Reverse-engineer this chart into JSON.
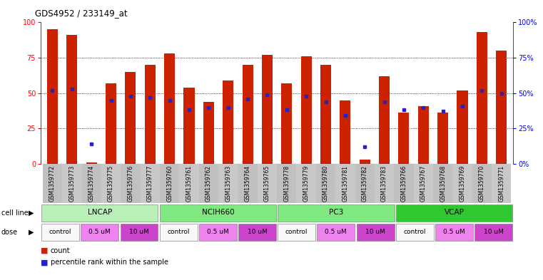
{
  "title": "GDS4952 / 233149_at",
  "samples": [
    "GSM1359772",
    "GSM1359773",
    "GSM1359774",
    "GSM1359775",
    "GSM1359776",
    "GSM1359777",
    "GSM1359760",
    "GSM1359761",
    "GSM1359762",
    "GSM1359763",
    "GSM1359764",
    "GSM1359765",
    "GSM1359778",
    "GSM1359779",
    "GSM1359780",
    "GSM1359781",
    "GSM1359782",
    "GSM1359783",
    "GSM1359766",
    "GSM1359767",
    "GSM1359768",
    "GSM1359769",
    "GSM1359770",
    "GSM1359771"
  ],
  "red_values": [
    95,
    91,
    1,
    57,
    65,
    70,
    78,
    54,
    44,
    59,
    70,
    77,
    57,
    76,
    70,
    45,
    3,
    62,
    36,
    41,
    36,
    52,
    93,
    80
  ],
  "blue_values": [
    52,
    53,
    14,
    45,
    48,
    47,
    45,
    38,
    40,
    40,
    46,
    49,
    38,
    48,
    44,
    34,
    12,
    44,
    38,
    40,
    37,
    41,
    52,
    50
  ],
  "cell_line_data": [
    {
      "label": "LNCAP",
      "start": 0,
      "end": 6,
      "color": "#b8f0b8"
    },
    {
      "label": "NCIH660",
      "start": 6,
      "end": 12,
      "color": "#80e880"
    },
    {
      "label": "PC3",
      "start": 12,
      "end": 18,
      "color": "#80e880"
    },
    {
      "label": "VCAP",
      "start": 18,
      "end": 24,
      "color": "#30c830"
    }
  ],
  "dose_groups": [
    {
      "label": "control",
      "start": 0,
      "end": 2,
      "color": "#f8f8f8"
    },
    {
      "label": "0.5 uM",
      "start": 2,
      "end": 4,
      "color": "#ee82ee"
    },
    {
      "label": "10 uM",
      "start": 4,
      "end": 6,
      "color": "#cc44cc"
    },
    {
      "label": "control",
      "start": 6,
      "end": 8,
      "color": "#f8f8f8"
    },
    {
      "label": "0.5 uM",
      "start": 8,
      "end": 10,
      "color": "#ee82ee"
    },
    {
      "label": "10 uM",
      "start": 10,
      "end": 12,
      "color": "#cc44cc"
    },
    {
      "label": "control",
      "start": 12,
      "end": 14,
      "color": "#f8f8f8"
    },
    {
      "label": "0.5 uM",
      "start": 14,
      "end": 16,
      "color": "#ee82ee"
    },
    {
      "label": "10 uM",
      "start": 16,
      "end": 18,
      "color": "#cc44cc"
    },
    {
      "label": "control",
      "start": 18,
      "end": 20,
      "color": "#f8f8f8"
    },
    {
      "label": "0.5 uM",
      "start": 20,
      "end": 22,
      "color": "#ee82ee"
    },
    {
      "label": "10 uM",
      "start": 22,
      "end": 24,
      "color": "#cc44cc"
    }
  ],
  "bar_color": "#cc2200",
  "dot_color": "#2222cc",
  "grid_lines": [
    25,
    50,
    75
  ],
  "ylim": [
    0,
    100
  ],
  "yticks": [
    0,
    25,
    50,
    75,
    100
  ],
  "ytick_labels_right": [
    "0%",
    "25%",
    "50%",
    "75%",
    "100%"
  ],
  "legend_count_color": "#cc2200",
  "legend_dot_color": "#2222cc",
  "bg_gray": "#c8c8c8",
  "bar_width": 0.55
}
